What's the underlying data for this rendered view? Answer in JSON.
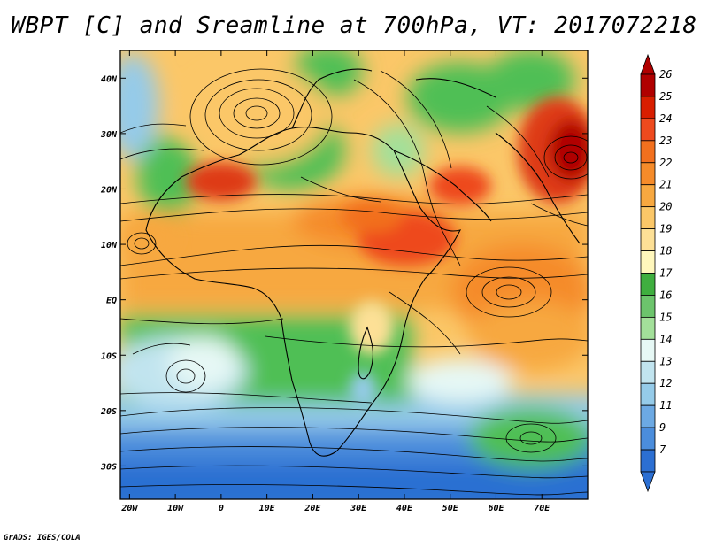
{
  "title": "WBPT [C] and Sreamline at 700hPa, VT: 2017072218",
  "footer": "GrADS: IGES/COLA",
  "map": {
    "lat_labels": [
      "40N",
      "30N",
      "20N",
      "10N",
      "EQ",
      "10S",
      "20S",
      "30S"
    ],
    "lat_values": [
      40,
      30,
      20,
      10,
      0,
      -10,
      -20,
      -30
    ],
    "lon_labels": [
      "20W",
      "10W",
      "0",
      "10E",
      "20E",
      "30E",
      "40E",
      "50E",
      "60E",
      "70E"
    ],
    "lon_values": [
      -20,
      -10,
      0,
      10,
      20,
      30,
      40,
      50,
      60,
      70
    ],
    "lat_range": [
      -36,
      45
    ],
    "lon_range": [
      -22,
      80
    ]
  },
  "colorbar": {
    "labels": [
      "26",
      "25",
      "24",
      "23",
      "22",
      "21",
      "20",
      "19",
      "18",
      "17",
      "16",
      "15",
      "14",
      "13",
      "12",
      "11",
      "9",
      "7"
    ],
    "colors": [
      "#b00000",
      "#d81e00",
      "#ee4a1e",
      "#f2701e",
      "#f58b2a",
      "#f7a840",
      "#fbc768",
      "#fde096",
      "#fff7bc",
      "#3fae3f",
      "#6cc46c",
      "#a3e09a",
      "#e6f8f5",
      "#c1e4ef",
      "#95cbe9",
      "#6ca9e3",
      "#4b8ddc",
      "#2c6fd2"
    ]
  },
  "colors": {
    "blue_deep": "#2c6fd2",
    "green": "#4fbf55",
    "orange": "#f6a43c",
    "red": "#de3a14"
  }
}
